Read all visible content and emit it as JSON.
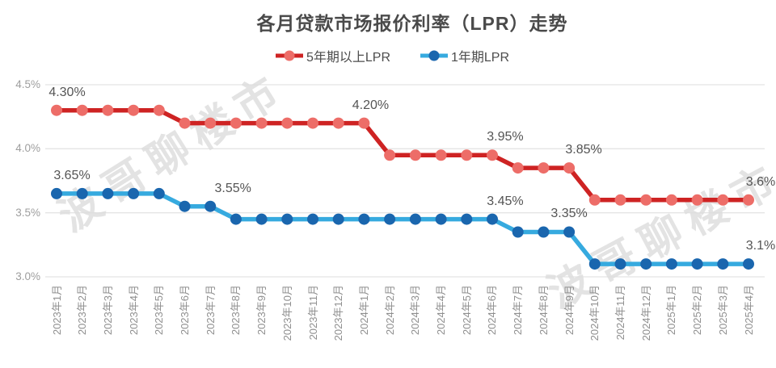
{
  "title": "各月贷款市场报价利率（LPR）走势",
  "watermark": {
    "text": "波哥聊楼市"
  },
  "chart_data": {
    "type": "line",
    "title": "各月贷款市场报价利率（LPR）走势",
    "grid": true,
    "legend_position": "top",
    "ylim": [
      3.0,
      4.5
    ],
    "yticks": [
      {
        "value": 4.5,
        "label": "4.5%"
      },
      {
        "value": 4.0,
        "label": "4.0%"
      },
      {
        "value": 3.5,
        "label": "3.5%"
      },
      {
        "value": 3.0,
        "label": "3.0%"
      }
    ],
    "categories": [
      "2023年1月",
      "2023年2月",
      "2023年3月",
      "2023年4月",
      "2023年5月",
      "2023年6月",
      "2023年7月",
      "2023年8月",
      "2023年9月",
      "2023年10月",
      "2023年11月",
      "2023年12月",
      "2024年1月",
      "2024年2月",
      "2024年3月",
      "2024年4月",
      "2024年5月",
      "2024年6月",
      "2024年7月",
      "2024年8月",
      "2024年9月",
      "2024年10月",
      "2024年11月",
      "2024年12月",
      "2025年1月",
      "2025年2月",
      "2025年3月",
      "2025年4月"
    ],
    "series": [
      {
        "key": "5y-lpr",
        "name": "5年期以上LPR",
        "line_color": "#ce2323",
        "marker_color": "#ed6d68",
        "values": [
          4.3,
          4.3,
          4.3,
          4.3,
          4.3,
          4.2,
          4.2,
          4.2,
          4.2,
          4.2,
          4.2,
          4.2,
          4.2,
          3.95,
          3.95,
          3.95,
          3.95,
          3.95,
          3.85,
          3.85,
          3.85,
          3.6,
          3.6,
          3.6,
          3.6,
          3.6,
          3.6,
          3.6
        ]
      },
      {
        "key": "1y-lpr",
        "name": "1年期LPR",
        "line_color": "#36aadf",
        "marker_color": "#1a66ae",
        "values": [
          3.65,
          3.65,
          3.65,
          3.65,
          3.65,
          3.55,
          3.55,
          3.45,
          3.45,
          3.45,
          3.45,
          3.45,
          3.45,
          3.45,
          3.45,
          3.45,
          3.45,
          3.45,
          3.35,
          3.35,
          3.35,
          3.1,
          3.1,
          3.1,
          3.1,
          3.1,
          3.1,
          3.1
        ]
      }
    ],
    "annotations": [
      {
        "series": 0,
        "index": 0,
        "text": "4.30%",
        "dx": 13
      },
      {
        "series": 0,
        "index": 12,
        "text": "4.20%",
        "dx": 8
      },
      {
        "series": 0,
        "index": 17,
        "text": "3.95%",
        "dx": 16
      },
      {
        "series": 0,
        "index": 20,
        "text": "3.85%",
        "dx": 18
      },
      {
        "series": 0,
        "index": 27,
        "text": "3.6%",
        "dx": 15
      },
      {
        "series": 1,
        "index": 0,
        "text": "3.65%",
        "dx": 19
      },
      {
        "series": 1,
        "index": 6,
        "text": "3.55%",
        "dx": 28
      },
      {
        "series": 1,
        "index": 17,
        "text": "3.45%",
        "dx": 16
      },
      {
        "series": 1,
        "index": 20,
        "text": "3.35%",
        "dx": 0
      },
      {
        "series": 1,
        "index": 27,
        "text": "3.1%",
        "dx": 15
      }
    ],
    "colors": {
      "gridline": "#dcdcdc",
      "ytick_text": "#9e9e9e",
      "xtick_text": "#8f8f8f",
      "data_label": "#545454",
      "title_text": "#4a4a4a"
    }
  }
}
